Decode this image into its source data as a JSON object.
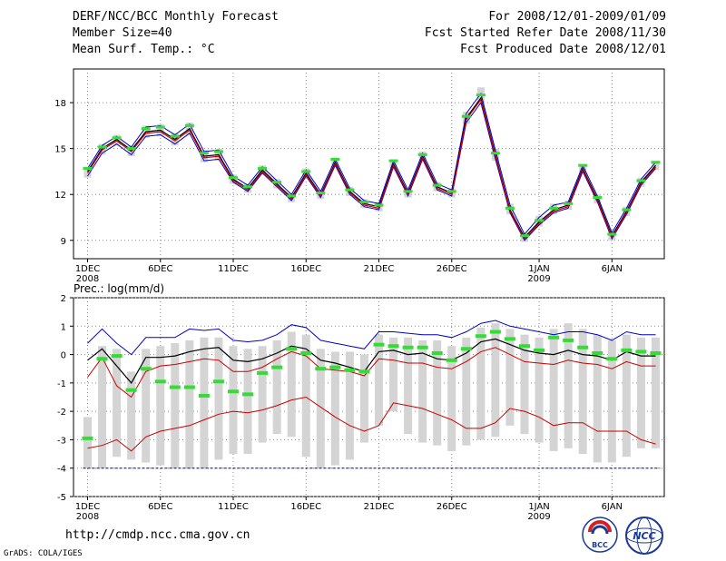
{
  "header": {
    "title": "DERF/NCC/BCC Monthly Forecast",
    "member_size": "Member Size=40",
    "variable": "Mean Surf. Temp.: °C",
    "period": "For 2008/12/01-2009/01/09",
    "started": "Fcst Started Refer Date 2008/11/30",
    "produced": "Fcst Produced Date 2008/12/01"
  },
  "footer": {
    "url": "http://cmdp.ncc.cma.gov.cn",
    "credit": "GrADS: COLA/IGES",
    "logo_left": "BCC",
    "logo_right": "NCC"
  },
  "chart_data": [
    {
      "type": "line",
      "title": "Mean Surf. Temp.: °C",
      "xlabel": "",
      "ylabel": "",
      "ylim": [
        7.8,
        20.2
      ],
      "yticks": [
        9,
        12,
        15,
        18
      ],
      "x_ticks": [
        {
          "day": 1,
          "label": "1DEC",
          "sub": "2008"
        },
        {
          "day": 6,
          "label": "6DEC",
          "sub": ""
        },
        {
          "day": 11,
          "label": "11DEC",
          "sub": ""
        },
        {
          "day": 16,
          "label": "16DEC",
          "sub": ""
        },
        {
          "day": 21,
          "label": "21DEC",
          "sub": ""
        },
        {
          "day": 26,
          "label": "26DEC",
          "sub": ""
        },
        {
          "day": 32,
          "label": "1JAN",
          "sub": "2009"
        },
        {
          "day": 37,
          "label": "6JAN",
          "sub": ""
        }
      ],
      "colors": {
        "upper": "#0000cc",
        "lower": "#0000cc",
        "ensemble_mean": "#000000",
        "median": "#cc0000",
        "marker": "#33dd33",
        "box": "#d4d4d4"
      },
      "series": [
        {
          "name": "ensemble-mean",
          "values": [
            13.5,
            15.0,
            15.6,
            14.9,
            16.1,
            16.2,
            15.6,
            16.3,
            14.5,
            14.6,
            13.0,
            12.4,
            13.6,
            12.7,
            11.8,
            13.4,
            12.0,
            14.1,
            12.2,
            11.4,
            11.2,
            14.0,
            12.1,
            14.5,
            12.5,
            12.1,
            17.0,
            18.3,
            14.6,
            11.0,
            9.2,
            10.2,
            11.0,
            11.3,
            13.7,
            11.7,
            9.3,
            10.9,
            12.8,
            13.9
          ]
        },
        {
          "name": "upper",
          "values": [
            13.7,
            15.2,
            15.8,
            15.1,
            16.4,
            16.5,
            15.9,
            16.6,
            14.8,
            14.9,
            13.2,
            12.6,
            13.8,
            12.9,
            12.0,
            13.6,
            12.2,
            14.3,
            12.4,
            11.6,
            11.4,
            14.2,
            12.3,
            14.7,
            12.7,
            12.3,
            17.3,
            18.6,
            14.9,
            11.3,
            9.4,
            10.5,
            11.3,
            11.5,
            13.9,
            11.9,
            9.5,
            11.1,
            13.0,
            14.1
          ]
        },
        {
          "name": "lower",
          "values": [
            13.2,
            14.7,
            15.3,
            14.6,
            15.8,
            15.9,
            15.3,
            16.0,
            14.2,
            14.3,
            12.8,
            12.2,
            13.4,
            12.5,
            11.6,
            13.2,
            11.8,
            13.9,
            12.0,
            11.2,
            11.0,
            13.8,
            11.9,
            14.3,
            12.3,
            11.9,
            16.7,
            18.0,
            14.3,
            10.8,
            9.0,
            10.0,
            10.8,
            11.1,
            13.5,
            11.5,
            9.1,
            10.7,
            12.6,
            13.7
          ]
        },
        {
          "name": "median",
          "values": [
            13.4,
            14.9,
            15.5,
            14.8,
            16.0,
            16.1,
            15.5,
            16.2,
            14.4,
            14.5,
            12.9,
            12.3,
            13.5,
            12.6,
            11.7,
            13.3,
            11.9,
            14.0,
            12.1,
            11.3,
            11.1,
            13.9,
            12.0,
            14.4,
            12.4,
            12.0,
            16.9,
            18.2,
            14.5,
            10.9,
            9.1,
            10.1,
            10.9,
            11.2,
            13.6,
            11.6,
            9.2,
            10.8,
            12.7,
            13.8
          ]
        },
        {
          "name": "markers",
          "values": [
            13.7,
            15.1,
            15.7,
            15.0,
            16.3,
            16.4,
            15.8,
            16.5,
            14.7,
            14.8,
            13.1,
            12.5,
            13.7,
            12.8,
            11.9,
            13.5,
            12.1,
            14.3,
            12.3,
            11.5,
            11.3,
            14.2,
            12.2,
            14.6,
            12.6,
            12.2,
            17.1,
            18.5,
            14.7,
            11.1,
            9.3,
            10.3,
            11.1,
            11.4,
            13.9,
            11.8,
            9.4,
            11.0,
            12.9,
            14.1
          ]
        },
        {
          "name": "spread-top",
          "values": [
            13.8,
            15.3,
            15.9,
            15.2,
            16.5,
            16.6,
            16.0,
            16.7,
            14.9,
            15.0,
            13.3,
            12.7,
            13.9,
            13.0,
            12.1,
            13.7,
            12.3,
            14.4,
            12.5,
            11.7,
            11.5,
            14.3,
            12.4,
            14.8,
            12.8,
            12.4,
            17.4,
            19.0,
            15.0,
            11.4,
            9.5,
            10.6,
            11.4,
            11.6,
            14.0,
            12.0,
            9.6,
            11.2,
            13.1,
            14.2
          ]
        },
        {
          "name": "spread-bottom",
          "values": [
            13.1,
            14.6,
            15.2,
            14.5,
            15.7,
            15.8,
            15.2,
            15.9,
            14.1,
            14.2,
            12.7,
            12.1,
            13.3,
            12.4,
            11.5,
            13.1,
            11.7,
            13.8,
            11.9,
            11.1,
            10.9,
            13.7,
            11.8,
            14.2,
            12.2,
            11.8,
            16.6,
            17.9,
            14.2,
            10.7,
            8.9,
            9.9,
            10.7,
            11.0,
            13.4,
            11.4,
            9.0,
            10.6,
            12.5,
            13.6
          ]
        }
      ]
    },
    {
      "type": "line",
      "title": "Prec.: log(mm/d)",
      "xlabel": "",
      "ylabel": "",
      "ylim": [
        -5,
        2
      ],
      "yticks": [
        -5,
        -4,
        -3,
        -2,
        -1,
        0,
        1,
        2
      ],
      "x_ticks": [
        {
          "day": 1,
          "label": "1DEC",
          "sub": "2008"
        },
        {
          "day": 6,
          "label": "6DEC",
          "sub": ""
        },
        {
          "day": 11,
          "label": "11DEC",
          "sub": ""
        },
        {
          "day": 16,
          "label": "16DEC",
          "sub": ""
        },
        {
          "day": 21,
          "label": "21DEC",
          "sub": ""
        },
        {
          "day": 26,
          "label": "26DEC",
          "sub": ""
        },
        {
          "day": 32,
          "label": "1JAN",
          "sub": "2009"
        },
        {
          "day": 37,
          "label": "6JAN",
          "sub": ""
        }
      ],
      "baseline": -4,
      "colors": {
        "upper": "#0000cc",
        "mean": "#000000",
        "red": "#cc0000",
        "marker": "#33dd33",
        "box": "#d4d4d4"
      },
      "series": [
        {
          "name": "upper-blue",
          "values": [
            0.4,
            0.9,
            0.4,
            0.0,
            0.6,
            0.6,
            0.6,
            0.9,
            0.85,
            0.9,
            0.5,
            0.45,
            0.5,
            0.7,
            1.05,
            0.95,
            0.5,
            0.4,
            0.3,
            0.2,
            0.8,
            0.8,
            0.75,
            0.7,
            0.7,
            0.6,
            0.8,
            1.1,
            1.2,
            1.0,
            0.9,
            0.8,
            0.7,
            0.8,
            0.8,
            0.7,
            0.5,
            0.8,
            0.7,
            0.7
          ]
        },
        {
          "name": "mean-black",
          "values": [
            -0.2,
            0.2,
            -0.4,
            -1.0,
            -0.1,
            -0.1,
            -0.05,
            0.1,
            0.2,
            0.25,
            -0.2,
            -0.25,
            -0.15,
            0.05,
            0.3,
            0.2,
            -0.2,
            -0.3,
            -0.45,
            -0.6,
            0.1,
            0.15,
            0.0,
            0.05,
            -0.15,
            -0.2,
            0.05,
            0.45,
            0.55,
            0.35,
            0.15,
            0.05,
            0.0,
            0.15,
            0.0,
            -0.05,
            -0.2,
            0.1,
            -0.05,
            -0.05
          ]
        },
        {
          "name": "red-upper",
          "values": [
            -0.8,
            -0.1,
            -1.1,
            -1.5,
            -0.6,
            -0.4,
            -0.35,
            -0.25,
            -0.15,
            -0.2,
            -0.6,
            -0.6,
            -0.45,
            -0.15,
            0.1,
            -0.05,
            -0.5,
            -0.55,
            -0.6,
            -0.75,
            -0.15,
            -0.2,
            -0.3,
            -0.3,
            -0.45,
            -0.5,
            -0.25,
            0.1,
            0.25,
            0.0,
            -0.25,
            -0.3,
            -0.35,
            -0.2,
            -0.3,
            -0.35,
            -0.5,
            -0.25,
            -0.4,
            -0.4
          ]
        },
        {
          "name": "red-lower",
          "values": [
            -3.3,
            -3.2,
            -3.0,
            -3.4,
            -2.9,
            -2.7,
            -2.6,
            -2.5,
            -2.3,
            -2.1,
            -2.0,
            -2.05,
            -1.95,
            -1.8,
            -1.6,
            -1.5,
            -1.85,
            -2.2,
            -2.5,
            -2.7,
            -2.5,
            -1.7,
            -1.8,
            -1.9,
            -2.1,
            -2.3,
            -2.6,
            -2.6,
            -2.4,
            -1.9,
            -2.0,
            -2.2,
            -2.5,
            -2.4,
            -2.4,
            -2.7,
            -2.7,
            -2.7,
            -3.0,
            -3.15
          ]
        },
        {
          "name": "markers",
          "values": [
            -2.95,
            -0.15,
            -0.05,
            -1.25,
            -0.5,
            -0.95,
            -1.15,
            -1.15,
            -1.45,
            -0.95,
            -1.3,
            -1.4,
            -0.65,
            -0.45,
            0.2,
            0.05,
            -0.5,
            -0.45,
            -0.55,
            -0.6,
            0.35,
            0.3,
            0.25,
            0.25,
            0.05,
            -0.2,
            0.2,
            0.65,
            0.8,
            0.55,
            0.3,
            0.15,
            0.6,
            0.5,
            0.25,
            0.05,
            -0.15,
            0.15,
            0.1,
            0.05
          ]
        },
        {
          "name": "box-top",
          "values": [
            -2.2,
            0.3,
            0.2,
            -0.6,
            0.2,
            0.3,
            0.4,
            0.5,
            0.6,
            0.6,
            0.3,
            0.2,
            0.3,
            0.5,
            0.8,
            0.7,
            0.2,
            0.1,
            0.1,
            0.0,
            0.7,
            0.6,
            0.6,
            0.5,
            0.5,
            0.3,
            0.6,
            0.95,
            1.1,
            0.9,
            0.7,
            0.6,
            0.9,
            1.1,
            0.9,
            0.7,
            0.5,
            0.7,
            0.6,
            0.6
          ]
        },
        {
          "name": "box-bottom",
          "values": [
            -4.0,
            -4.0,
            -3.6,
            -3.7,
            -3.8,
            -3.9,
            -4.0,
            -4.0,
            -4.0,
            -3.7,
            -3.5,
            -3.5,
            -3.1,
            -2.8,
            -2.9,
            -3.6,
            -4.0,
            -3.9,
            -3.7,
            -3.1,
            -2.5,
            -2.0,
            -2.8,
            -3.1,
            -3.2,
            -3.4,
            -3.2,
            -3.0,
            -2.9,
            -2.5,
            -2.8,
            -3.1,
            -3.4,
            -3.3,
            -3.5,
            -3.8,
            -3.8,
            -3.6,
            -3.3,
            -3.3
          ]
        }
      ]
    }
  ]
}
